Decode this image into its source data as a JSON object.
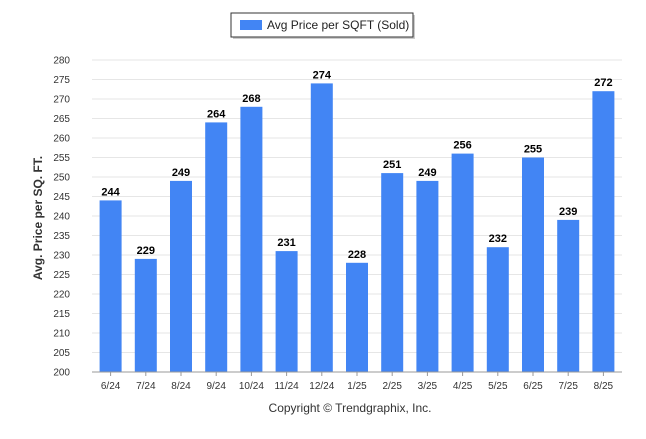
{
  "chart_data": {
    "type": "bar",
    "title": "",
    "xlabel": "",
    "ylabel": "Avg. Price per SQ. FT.",
    "ylim": [
      200,
      280
    ],
    "ytick_step": 5,
    "grid": true,
    "legend_position": "top-center",
    "bar_color": "#4285f4",
    "categories": [
      "6/24",
      "7/24",
      "8/24",
      "9/24",
      "10/24",
      "11/24",
      "12/24",
      "1/25",
      "2/25",
      "3/25",
      "4/25",
      "5/25",
      "6/25",
      "7/25",
      "8/25"
    ],
    "series": [
      {
        "name": "Avg Price per SQFT (Sold)",
        "values": [
          244,
          229,
          249,
          264,
          268,
          231,
          274,
          228,
          251,
          249,
          256,
          232,
          255,
          239,
          272
        ]
      }
    ]
  },
  "footer": {
    "copyright": "Copyright © Trendgraphix, Inc."
  }
}
